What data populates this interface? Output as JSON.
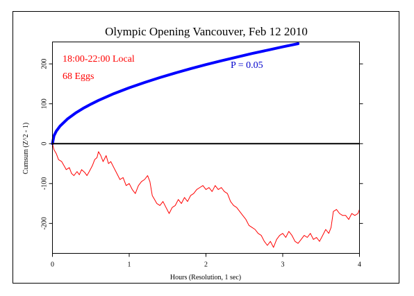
{
  "chart_data": {
    "type": "line",
    "title": "Olympic Opening Vancouver, Feb 12 2010",
    "xlabel": "Hours (Resolution, 1 sec)",
    "ylabel": "Cumsum (Z^2 - 1)",
    "xlim": [
      0,
      4
    ],
    "ylim": [
      -275,
      255
    ],
    "x_ticks": [
      0,
      1,
      2,
      3,
      4
    ],
    "y_ticks": [
      -200,
      -100,
      0,
      100,
      200
    ],
    "annotations": [
      {
        "text": "18:00-22:00 Local",
        "color": "#ff0000"
      },
      {
        "text": "68 Eggs",
        "color": "#ff0000"
      },
      {
        "text": "P = 0.05",
        "color": "#0000cc"
      }
    ],
    "series": [
      {
        "role": "cumsum",
        "color": "#ff0000",
        "x": [
          0,
          0.02,
          0.05,
          0.08,
          0.12,
          0.15,
          0.18,
          0.22,
          0.25,
          0.28,
          0.32,
          0.35,
          0.38,
          0.42,
          0.45,
          0.48,
          0.52,
          0.55,
          0.58,
          0.6,
          0.63,
          0.66,
          0.7,
          0.73,
          0.76,
          0.8,
          0.84,
          0.88,
          0.92,
          0.96,
          1.0,
          1.04,
          1.08,
          1.12,
          1.16,
          1.2,
          1.24,
          1.27,
          1.3,
          1.33,
          1.36,
          1.4,
          1.44,
          1.48,
          1.52,
          1.56,
          1.6,
          1.64,
          1.68,
          1.72,
          1.76,
          1.8,
          1.84,
          1.88,
          1.92,
          1.96,
          2.0,
          2.04,
          2.08,
          2.12,
          2.16,
          2.2,
          2.24,
          2.28,
          2.32,
          2.36,
          2.4,
          2.44,
          2.48,
          2.52,
          2.56,
          2.6,
          2.64,
          2.68,
          2.72,
          2.76,
          2.8,
          2.84,
          2.88,
          2.92,
          2.96,
          3.0,
          3.04,
          3.08,
          3.12,
          3.16,
          3.2,
          3.24,
          3.28,
          3.32,
          3.36,
          3.4,
          3.44,
          3.48,
          3.52,
          3.56,
          3.6,
          3.63,
          3.66,
          3.7,
          3.74,
          3.78,
          3.82,
          3.86,
          3.9,
          3.94,
          3.98,
          4.0
        ],
        "y": [
          0,
          -15,
          -25,
          -40,
          -45,
          -55,
          -65,
          -60,
          -75,
          -80,
          -70,
          -78,
          -65,
          -72,
          -80,
          -70,
          -55,
          -40,
          -35,
          -20,
          -30,
          -45,
          -30,
          -50,
          -45,
          -60,
          -75,
          -90,
          -85,
          -105,
          -100,
          -115,
          -125,
          -105,
          -95,
          -90,
          -80,
          -95,
          -130,
          -140,
          -150,
          -155,
          -145,
          -160,
          -175,
          -160,
          -155,
          -140,
          -150,
          -135,
          -145,
          -130,
          -125,
          -115,
          -110,
          -105,
          -115,
          -110,
          -120,
          -105,
          -115,
          -110,
          -120,
          -125,
          -145,
          -155,
          -160,
          -170,
          -180,
          -190,
          -205,
          -210,
          -215,
          -225,
          -230,
          -245,
          -255,
          -245,
          -260,
          -240,
          -230,
          -225,
          -235,
          -220,
          -230,
          -245,
          -250,
          -240,
          -230,
          -235,
          -225,
          -240,
          -235,
          -245,
          -230,
          -215,
          -225,
          -210,
          -170,
          -165,
          -175,
          -180,
          -180,
          -190,
          -175,
          -180,
          -175,
          -165
        ]
      },
      {
        "role": "p-0.05-envelope",
        "color": "#0000ff",
        "x": [
          0,
          0.02,
          0.05,
          0.1,
          0.2,
          0.3,
          0.4,
          0.5,
          0.6,
          0.8,
          1.0,
          1.2,
          1.4,
          1.6,
          1.8,
          2.0,
          2.2,
          2.4,
          2.6,
          2.8,
          3.0,
          3.2
        ],
        "y": [
          0,
          19.8,
          31.3,
          44.3,
          62.6,
          76.7,
          88.6,
          99.0,
          108.5,
          125.3,
          140.1,
          153.4,
          165.7,
          177.2,
          187.9,
          198.1,
          207.8,
          217.0,
          225.9,
          234.4,
          242.6,
          250.6
        ]
      }
    ]
  }
}
